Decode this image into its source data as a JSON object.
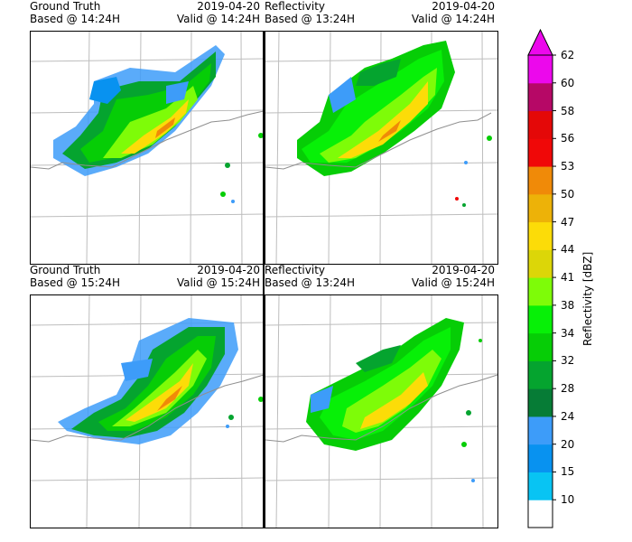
{
  "panels": [
    {
      "left_title_line1": "Ground Truth",
      "left_title_line2": "Based @ 14:24H",
      "right_title_line1": "2019-04-20",
      "right_title_line2": "Valid @ 14:24H"
    },
    {
      "left_title_line1": "Reflectivity",
      "left_title_line2": "Based @ 13:24H",
      "right_title_line1": "2019-04-20",
      "right_title_line2": "Valid @ 14:24H"
    },
    {
      "left_title_line1": "Ground Truth",
      "left_title_line2": "Based @ 15:24H",
      "right_title_line1": "2019-04-20",
      "right_title_line2": "Valid @ 15:24H"
    },
    {
      "left_title_line1": "Reflectivity",
      "left_title_line2": "Based @ 13:24H",
      "right_title_line1": "2019-04-20",
      "right_title_line2": "Valid @ 15:24H"
    }
  ],
  "colorbar": {
    "label": "Reflectivity [dBZ]",
    "ticks": [
      "10",
      "15",
      "20",
      "24",
      "28",
      "32",
      "34",
      "38",
      "41",
      "44",
      "47",
      "50",
      "53",
      "56",
      "58",
      "60",
      "62"
    ],
    "colors": [
      "#ffffff",
      "#08c4f3",
      "#0892f0",
      "#3d9cf9",
      "#067c36",
      "#05a42f",
      "#06cd06",
      "#07f007",
      "#7efc08",
      "#dcd608",
      "#fcdc08",
      "#edb208",
      "#f08a08",
      "#f00808",
      "#e40808",
      "#b60866",
      "#ec08ec"
    ],
    "extend_color": "#ec08ec"
  }
}
